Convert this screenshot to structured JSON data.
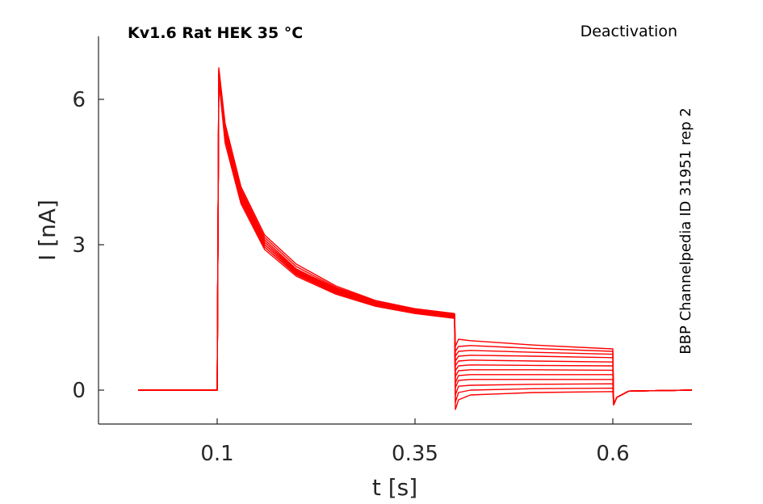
{
  "chart_data": {
    "type": "line",
    "title": "Kv1.6  Rat  HEK  35 °C",
    "protocol": "Deactivation",
    "source_note": "BBP Channelpedia ID 31951 rep 2",
    "xlabel": "t [s]",
    "ylabel": "I [nA]",
    "xlim": [
      -0.05,
      0.7
    ],
    "ylim": [
      -0.7,
      7.3
    ],
    "xticks": [
      0.1,
      0.35,
      0.6
    ],
    "xtick_labels": [
      "0.1",
      "0.35",
      "0.6"
    ],
    "yticks": [
      0,
      3,
      6
    ],
    "ytick_labels": [
      "0",
      "3",
      "6"
    ],
    "grid": false,
    "color": "#ff0000",
    "time_points": [
      0.0,
      0.1,
      0.102,
      0.11,
      0.13,
      0.16,
      0.2,
      0.25,
      0.3,
      0.35,
      0.4,
      0.401,
      0.405,
      0.42,
      0.5,
      0.6,
      0.601,
      0.605,
      0.62,
      0.7
    ],
    "series": [
      {
        "values": [
          0,
          0,
          6.6,
          5.4,
          4.1,
          3.1,
          2.5,
          2.1,
          1.8,
          1.65,
          1.5,
          -0.4,
          -0.2,
          -0.1,
          -0.05,
          -0.03,
          -0.3,
          -0.15,
          -0.02,
          0
        ]
      },
      {
        "values": [
          0,
          0,
          6.5,
          5.3,
          4.0,
          3.0,
          2.45,
          2.05,
          1.78,
          1.63,
          1.52,
          -0.25,
          -0.05,
          0.0,
          0.03,
          0.04,
          -0.3,
          -0.15,
          -0.02,
          0
        ]
      },
      {
        "values": [
          0,
          0,
          6.45,
          5.2,
          3.9,
          2.95,
          2.4,
          2.02,
          1.76,
          1.62,
          1.53,
          -0.1,
          0.08,
          0.1,
          0.12,
          0.13,
          -0.3,
          -0.15,
          -0.02,
          0
        ]
      },
      {
        "values": [
          0,
          0,
          6.4,
          5.25,
          3.95,
          3.0,
          2.42,
          2.03,
          1.77,
          1.6,
          1.5,
          0.05,
          0.2,
          0.22,
          0.22,
          0.22,
          -0.3,
          -0.15,
          -0.02,
          0
        ]
      },
      {
        "values": [
          0,
          0,
          6.5,
          5.35,
          4.05,
          3.05,
          2.48,
          2.08,
          1.8,
          1.64,
          1.55,
          0.15,
          0.3,
          0.32,
          0.32,
          0.32,
          -0.3,
          -0.15,
          -0.02,
          0
        ]
      },
      {
        "values": [
          0,
          0,
          6.55,
          5.4,
          4.1,
          3.1,
          2.5,
          2.1,
          1.82,
          1.66,
          1.55,
          0.28,
          0.4,
          0.42,
          0.42,
          0.41,
          -0.3,
          -0.15,
          -0.02,
          0
        ]
      },
      {
        "values": [
          0,
          0,
          6.4,
          5.1,
          3.85,
          2.9,
          2.35,
          1.98,
          1.73,
          1.58,
          1.48,
          0.4,
          0.5,
          0.52,
          0.51,
          0.5,
          -0.3,
          -0.15,
          -0.02,
          0
        ]
      },
      {
        "values": [
          0,
          0,
          6.45,
          5.2,
          3.9,
          2.95,
          2.38,
          2.0,
          1.75,
          1.6,
          1.5,
          0.5,
          0.6,
          0.62,
          0.6,
          0.58,
          -0.3,
          -0.15,
          -0.02,
          0
        ]
      },
      {
        "values": [
          0,
          0,
          6.5,
          5.3,
          4.0,
          3.0,
          2.43,
          2.04,
          1.78,
          1.62,
          1.52,
          0.6,
          0.7,
          0.72,
          0.7,
          0.67,
          -0.3,
          -0.15,
          -0.02,
          0
        ]
      },
      {
        "values": [
          0,
          0,
          6.55,
          5.35,
          4.05,
          3.05,
          2.46,
          2.06,
          1.8,
          1.64,
          1.54,
          0.7,
          0.8,
          0.82,
          0.78,
          0.74,
          -0.3,
          -0.15,
          -0.02,
          0
        ]
      },
      {
        "values": [
          0,
          0,
          6.6,
          5.45,
          4.15,
          3.15,
          2.55,
          2.12,
          1.84,
          1.67,
          1.56,
          0.8,
          0.9,
          0.92,
          0.86,
          0.8,
          -0.3,
          -0.15,
          -0.02,
          0
        ]
      },
      {
        "values": [
          0,
          0,
          6.65,
          5.5,
          4.2,
          3.2,
          2.6,
          2.15,
          1.85,
          1.68,
          1.58,
          0.9,
          1.05,
          1.02,
          0.93,
          0.85,
          -0.3,
          -0.15,
          -0.02,
          0
        ]
      }
    ]
  }
}
